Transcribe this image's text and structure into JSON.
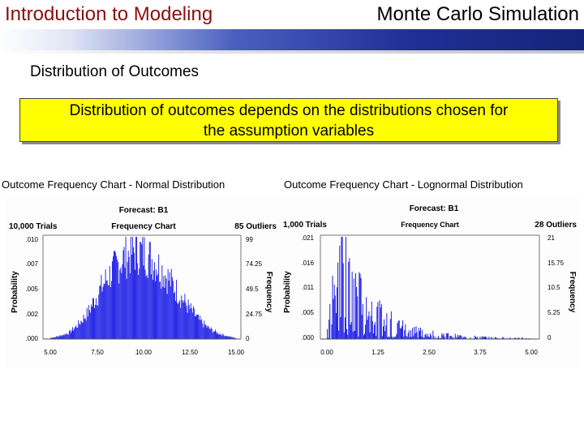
{
  "header": {
    "left_title": "Introduction to Modeling",
    "right_title": "Monte Carlo Simulation",
    "left_color": "#8b0f0f"
  },
  "subtitle": "Distribution of Outcomes",
  "note": {
    "line1": "Distribution of outcomes depends on the distributions chosen for",
    "line2": "the assumption variables",
    "background": "#ffff00"
  },
  "captions": {
    "left": "Outcome Frequency Chart -  Normal Distribution",
    "right": "Outcome Frequency Chart - Lognormal Distribution"
  },
  "charts": [
    {
      "forecast": "Forecast: B1",
      "trials": "10,000 Trials",
      "chart_title": "Frequency Chart",
      "outliers": "85 Outliers",
      "y_label": "Probability",
      "y2_label": "Frequency",
      "y_ticks": [
        ".010",
        ".007",
        ".005",
        ".002",
        ".000"
      ],
      "y2_ticks": [
        "99",
        "74.25",
        "49.5",
        "24.75",
        "0"
      ],
      "x_ticks": [
        "5.00",
        "7.50",
        "10.00",
        "12.50",
        "15.00"
      ],
      "bar_color": "#1010e6"
    },
    {
      "forecast": "Forecast: B1",
      "trials": "1,000 Trials",
      "chart_title": "Frequency Chart",
      "outliers": "28 Outliers",
      "y_label": "Probability",
      "y2_label": "Frequency",
      "y_ticks": [
        ".021",
        ".016",
        ".011",
        ".005",
        ".000"
      ],
      "y2_ticks": [
        "21",
        "15.75",
        "10.5",
        "5.25",
        "0"
      ],
      "x_ticks": [
        "0.00",
        "1.25",
        "2.50",
        "3.75",
        "5.00"
      ],
      "bar_color": "#1010e6"
    }
  ],
  "chart_data": [
    {
      "type": "bar",
      "title": "Frequency Chart",
      "subtitle": "Forecast: B1",
      "distribution": "normal",
      "trials": 10000,
      "outliers": 85,
      "xlim": [
        5.0,
        15.0
      ],
      "ylim": [
        0,
        0.01
      ],
      "y2lim": [
        0,
        99
      ],
      "xlabel": "",
      "ylabel": "Probability",
      "y2label": "Frequency",
      "x": [
        5.0,
        5.5,
        6.0,
        6.5,
        7.0,
        7.5,
        8.0,
        8.5,
        9.0,
        9.5,
        10.0,
        10.5,
        11.0,
        11.5,
        12.0,
        12.5,
        13.0,
        13.5,
        14.0,
        14.5,
        15.0
      ],
      "values": [
        0.0001,
        0.0003,
        0.0006,
        0.0014,
        0.0025,
        0.0042,
        0.0058,
        0.007,
        0.008,
        0.0086,
        0.0085,
        0.0078,
        0.0068,
        0.0056,
        0.0042,
        0.003,
        0.0019,
        0.0011,
        0.0006,
        0.0003,
        0.0001
      ]
    },
    {
      "type": "bar",
      "title": "Frequency Chart",
      "subtitle": "Forecast: B1",
      "distribution": "lognormal",
      "trials": 1000,
      "outliers": 28,
      "xlim": [
        0.0,
        5.0
      ],
      "ylim": [
        0,
        0.021
      ],
      "y2lim": [
        0,
        21
      ],
      "xlabel": "",
      "ylabel": "Probability",
      "y2label": "Frequency",
      "x": [
        0.0,
        0.25,
        0.5,
        0.75,
        1.0,
        1.25,
        1.5,
        1.75,
        2.0,
        2.25,
        2.5,
        2.75,
        3.0,
        3.25,
        3.5,
        3.75,
        4.0,
        4.25,
        4.5,
        4.75,
        5.0
      ],
      "values": [
        0.001,
        0.02,
        0.014,
        0.0095,
        0.007,
        0.0052,
        0.004,
        0.003,
        0.0022,
        0.0018,
        0.0013,
        0.001,
        0.0008,
        0.0006,
        0.0005,
        0.0004,
        0.0003,
        0.0003,
        0.0002,
        0.0002,
        0.0001
      ]
    }
  ]
}
